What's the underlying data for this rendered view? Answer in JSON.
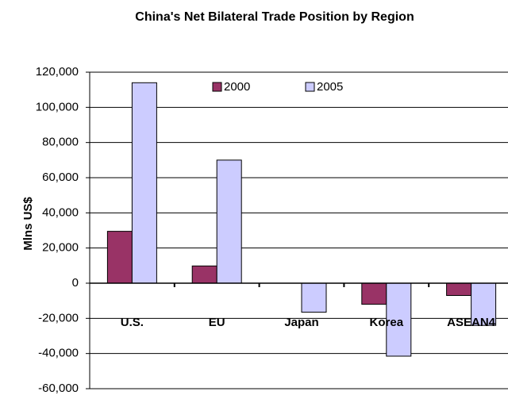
{
  "chart_data": {
    "type": "bar",
    "title": "China's Net Bilateral Trade Position by Region",
    "y_label": "Mlns US$",
    "categories": [
      "U.S.",
      "EU",
      "Japan",
      "Korea",
      "ASEAN4"
    ],
    "series": [
      {
        "name": "2000",
        "color": "#993366",
        "values": [
          29500,
          9800,
          0,
          -12000,
          -7000
        ]
      },
      {
        "name": "2005",
        "color": "#ccccff",
        "values": [
          114000,
          70000,
          -16500,
          -41500,
          -24000
        ]
      }
    ],
    "ylim": [
      -60000,
      120000
    ],
    "yticks": [
      {
        "value": -60000,
        "label": "-60,000"
      },
      {
        "value": -40000,
        "label": "-40,000"
      },
      {
        "value": -20000,
        "label": "-20,000"
      },
      0,
      {
        "value": 20000,
        "label": "20,000"
      },
      {
        "value": 40000,
        "label": "40,000"
      },
      {
        "value": 60000,
        "label": "60,000"
      },
      {
        "value": 80000,
        "label": "80,000"
      },
      {
        "value": 100000,
        "label": "100,000"
      },
      {
        "value": 120000,
        "label": "120,000"
      }
    ],
    "grid": true,
    "legend": "top"
  }
}
